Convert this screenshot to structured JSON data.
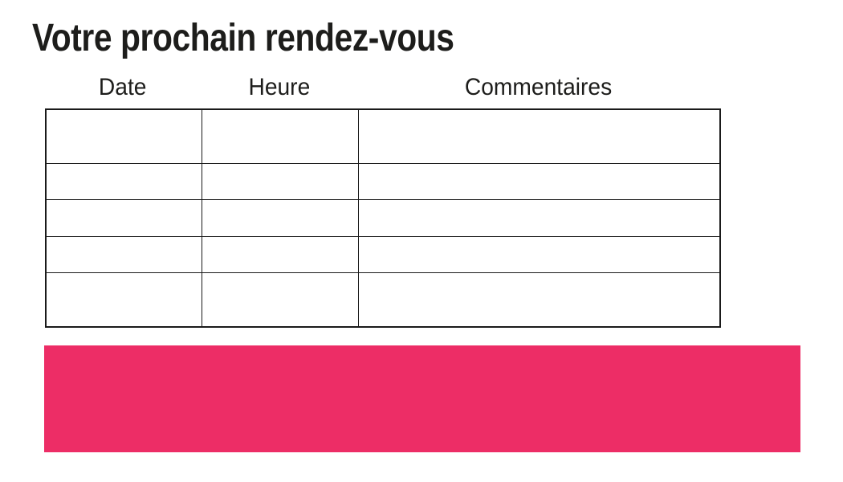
{
  "slide": {
    "title": "Votre prochain rendez-vous"
  },
  "table": {
    "columns": [
      {
        "label": "Date"
      },
      {
        "label": "Heure"
      },
      {
        "label": "Commentaires"
      }
    ],
    "rows": [
      [
        "",
        "",
        ""
      ],
      [
        "",
        "",
        ""
      ],
      [
        "",
        "",
        ""
      ],
      [
        "",
        "",
        ""
      ],
      [
        "",
        "",
        ""
      ]
    ]
  },
  "banner": {
    "text": ""
  },
  "colors": {
    "accent_pink": "#ED2D66",
    "text": "#1D1D1B",
    "table_border": "#1A1A1A",
    "background": "#FFFFFF"
  }
}
